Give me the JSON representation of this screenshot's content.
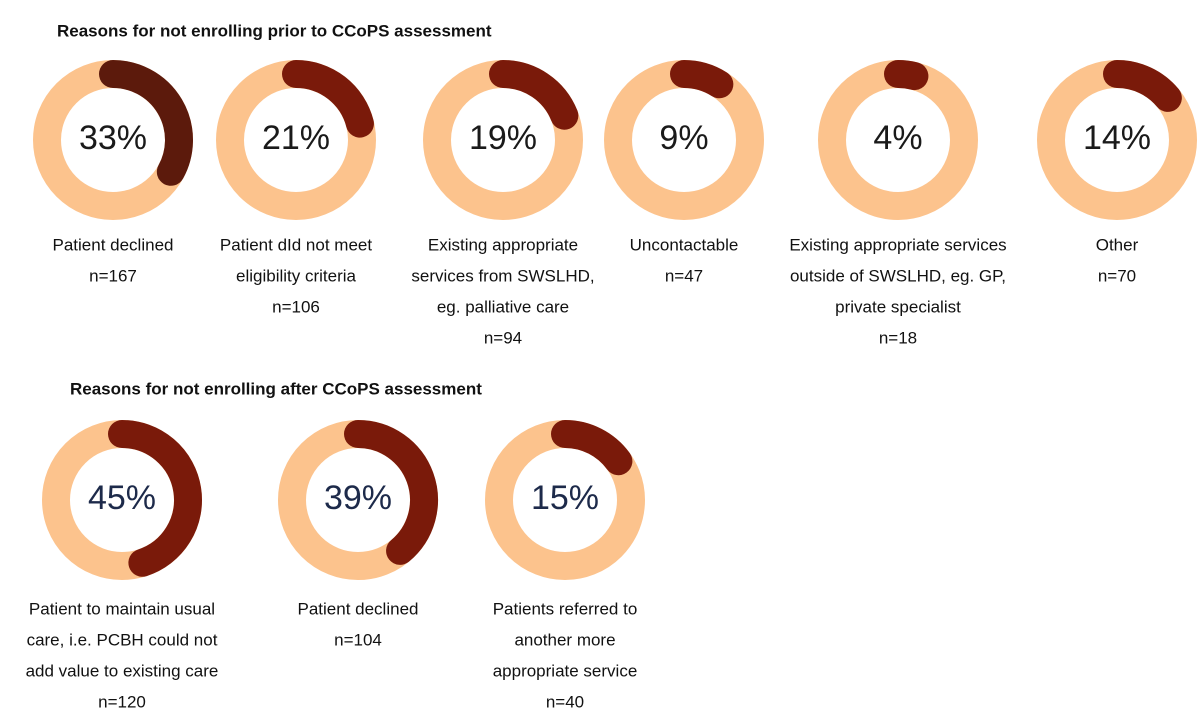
{
  "chart_data": [
    {
      "type": "donut",
      "title": "Reasons for  not enrolling prior to CCoPS assessment",
      "categories": [
        [
          "Patient declined"
        ],
        [
          "Patient dId not meet",
          "eligibility criteria"
        ],
        [
          "Existing appropriate",
          "services from SWSLHD,",
          "eg. palliative care"
        ],
        [
          "Uncontactable"
        ],
        [
          "Existing appropriate services",
          "outside of SWSLHD, eg. GP,",
          "private specialist"
        ],
        [
          "Other"
        ]
      ],
      "values": [
        33,
        21,
        19,
        9,
        4,
        14
      ],
      "value_labels": [
        "33%",
        "21%",
        "19%",
        "9%",
        "4%",
        "14%"
      ],
      "n_labels": [
        "n=167",
        "n=106",
        "n=94",
        "n=47",
        "n=18",
        "n=70"
      ],
      "colors": [
        "#5c1a0c",
        "#7a1a0a",
        "#7a1a0a",
        "#7a1a0a",
        "#7a1a0a",
        "#7a1a0a"
      ],
      "track_color": "#fcc38d"
    },
    {
      "type": "donut",
      "title": "Reasons for  not enrolling after CCoPS assessment",
      "categories": [
        [
          "Patient to maintain usual",
          "care, i.e. PCBH could not",
          "add value to existing care"
        ],
        [
          "Patient declined"
        ],
        [
          "Patients referred to",
          "another more",
          "appropriate service"
        ]
      ],
      "values": [
        45,
        39,
        15
      ],
      "value_labels": [
        "45%",
        "39%",
        "15%"
      ],
      "n_labels": [
        "n=120",
        "n=104",
        "n=40"
      ],
      "colors": [
        "#7a1a0a",
        "#7a1a0a",
        "#7a1a0a"
      ],
      "track_color": "#fcc38d"
    }
  ]
}
